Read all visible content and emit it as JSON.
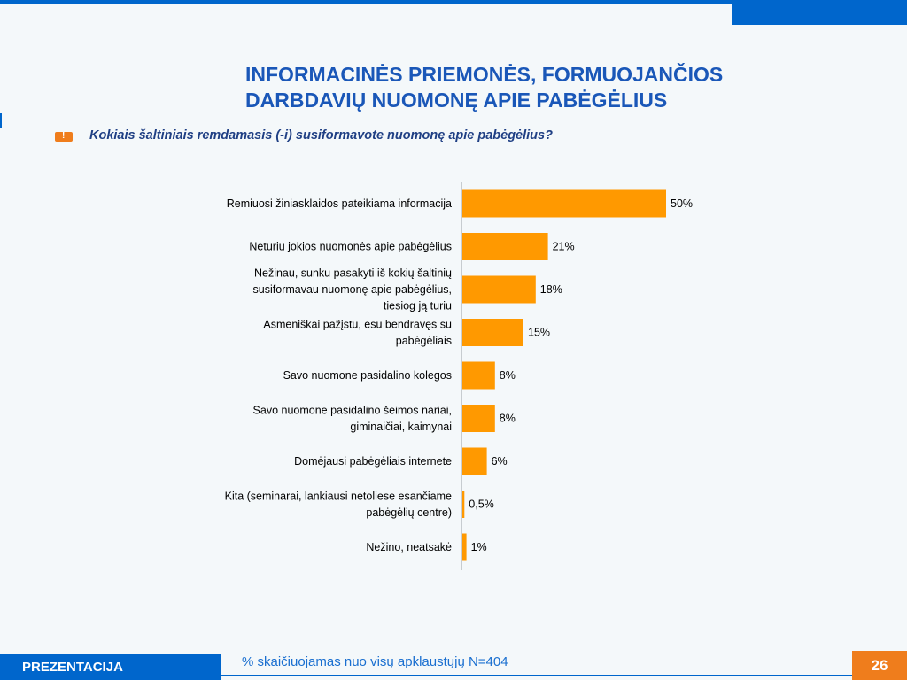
{
  "title": {
    "line1": "INFORMACINĖS PRIEMONĖS, FORMUOJANČIOS",
    "line2": "DARBDAVIŲ NUOMONĘ APIE PABĖGĖLIUS"
  },
  "question": "Kokiais šaltiniais remdamasis (-i) susiformavote nuomonę apie pabėgėlius?",
  "question_icon": "exclamation-icon",
  "chart_data": {
    "type": "bar",
    "orientation": "horizontal",
    "categories": [
      [
        "Remiuosi žiniasklaidos pateikiama informacija"
      ],
      [
        "Neturiu jokios nuomonės apie pabėgėlius"
      ],
      [
        "Nežinau, sunku pasakyti iš kokių šaltinių",
        "susiformavau nuomonę apie pabėgėlius,",
        "tiesiog ją turiu"
      ],
      [
        "Asmeniškai pažįstu, esu bendravęs su",
        "pabėgėliais"
      ],
      [
        "Savo nuomone pasidalino kolegos"
      ],
      [
        "Savo nuomone pasidalino šeimos nariai,",
        "giminaičiai, kaimynai"
      ],
      [
        "Domėjausi pabėgėliais internete"
      ],
      [
        "Kita (seminarai, lankiausi netoliese esančiame",
        "pabėgėlių centre)"
      ],
      [
        "Nežino, neatsakė"
      ]
    ],
    "values": [
      50,
      21,
      18,
      15,
      8,
      8,
      6,
      0.5,
      1
    ],
    "data_labels": [
      "50%",
      "21%",
      "18%",
      "15%",
      "8%",
      "8%",
      "6%",
      "0,5%",
      "1%"
    ],
    "bar_color": "#ff9900",
    "xlim": [
      0,
      50
    ],
    "grid": false,
    "legend": "none"
  },
  "footer": {
    "label": "PREZENTACIJA",
    "note": "% skaičiuojamas nuo visų apklaustųjų N=404",
    "page": "26"
  },
  "colors": {
    "brand_blue": "#0066cc",
    "accent_orange": "#ef7d1c",
    "title_blue": "#1a57b8"
  }
}
